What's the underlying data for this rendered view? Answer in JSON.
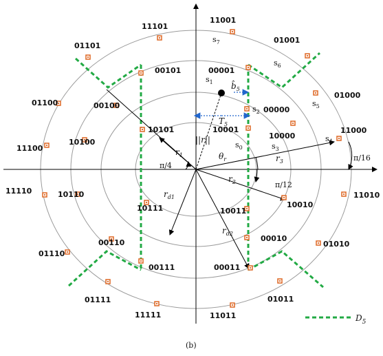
{
  "figure": {
    "caption": "(b)",
    "legend_label": "D",
    "legend_sub": "5"
  },
  "axes": {
    "angle_labels": [
      "π/4",
      "π/12",
      "π/16"
    ]
  },
  "vectors": {
    "r_norm": "||r||",
    "r1": "r",
    "r1_sub": "1",
    "r2": "r",
    "r2_sub": "2",
    "r3": "r",
    "r3_sub": "3",
    "rd1": "r",
    "rd1_sub": "d1",
    "rd2": "r",
    "rd2_sub": "d2",
    "theta": "θ",
    "theta_sub": "r",
    "T5": "T",
    "T5_sub": "5",
    "b5": "b̂",
    "b5_sub": "5"
  },
  "symbols": {
    "s0": "s",
    "s0_sub": "0",
    "s1": "s",
    "s1_sub": "1",
    "s2": "s",
    "s2_sub": "2",
    "s3": "s",
    "s3_sub": "3",
    "s4": "s",
    "s4_sub": "4",
    "s5": "s",
    "s5_sub": "5",
    "s6": "s",
    "s6_sub": "6",
    "s7": "s",
    "s7_sub": "7"
  },
  "codewords": [
    "11001",
    "01001",
    "11101",
    "01101",
    "00101",
    "00001",
    "00100",
    "01100",
    "10001",
    "10101",
    "00000",
    "01000",
    "10000",
    "11000",
    "11100",
    "10100",
    "11110",
    "10110",
    "10111",
    "10011",
    "10010",
    "11010",
    "00110",
    "00010",
    "01010",
    "01110",
    "00111",
    "00011",
    "01111",
    "01011",
    "11111",
    "11011"
  ]
}
